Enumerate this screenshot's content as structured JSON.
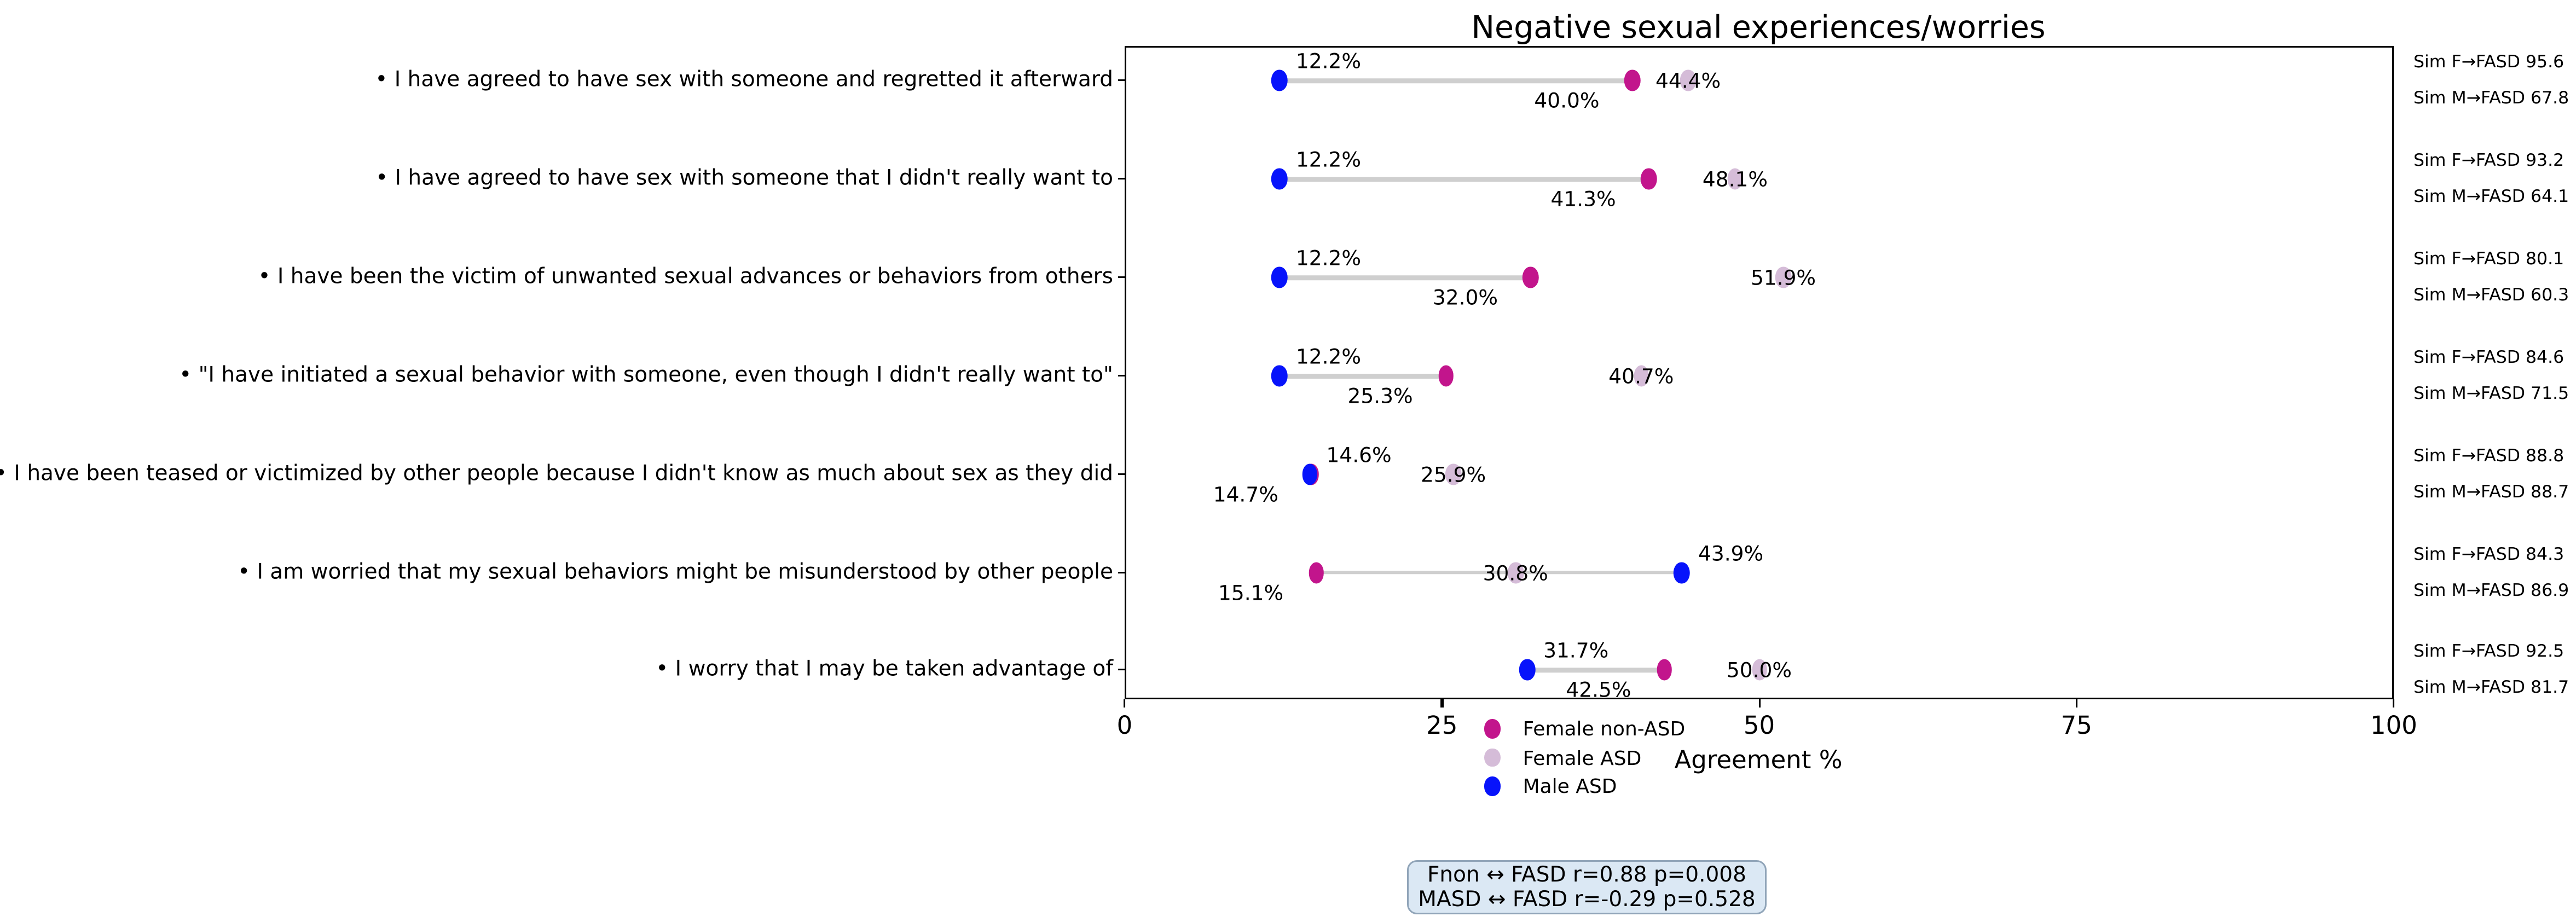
{
  "title": "Negative sexual experiences/worries",
  "xlabel": "Agreement %",
  "stats_box": {
    "line1": "Fnon ↔ FASD  r=0.88  p=0.008",
    "line2": "MASD ↔ FASD  r=-0.29  p=0.528"
  },
  "legend": [
    {
      "label": "Female non-ASD",
      "color": "#c2158c"
    },
    {
      "label": "Female ASD",
      "color": "#d5bcd8"
    },
    {
      "label": "Male ASD",
      "color": "#0713fb"
    }
  ],
  "colors": {
    "female_non_asd": "#c2158c",
    "female_asd": "#d5bcd8",
    "male_asd": "#0713fb",
    "connector": "#cfcfcf",
    "stats_box_bg": "#dbe8f4",
    "stats_box_border": "#90a4b8"
  },
  "chart_data": {
    "type": "scatter",
    "subtype": "dumbbell-dot-plot",
    "title": "Negative sexual experiences/worries",
    "xlabel": "Agreement %",
    "xlim": [
      0,
      100
    ],
    "x_ticks": [
      0,
      25,
      50,
      75,
      100
    ],
    "grid": false,
    "legend_position": "below-axis-left-of-center",
    "categories": [
      "• I have agreed to have sex with someone and regretted it afterward",
      "• I have agreed to have sex with someone that I didn't really want to",
      "• I have been the victim of unwanted sexual advances or behaviors from others",
      "• \"I have initiated a sexual behavior with someone, even though I didn't really want to\"",
      "• I have been teased or victimized by other people because I didn't know as much about sex as they did",
      "• I am worried that my sexual behaviors might be misunderstood by other people",
      "• I worry that I may be taken advantage of"
    ],
    "series": [
      {
        "name": "Female non-ASD",
        "values": [
          40.0,
          41.3,
          32.0,
          25.3,
          14.7,
          15.1,
          42.5
        ]
      },
      {
        "name": "Female ASD",
        "values": [
          44.4,
          48.1,
          51.9,
          40.7,
          25.9,
          30.8,
          50.0
        ]
      },
      {
        "name": "Male ASD",
        "values": [
          12.2,
          12.2,
          12.2,
          12.2,
          14.6,
          43.9,
          31.7
        ]
      }
    ],
    "right_annotations": [
      {
        "line1": "Sim F→FASD 95.6",
        "line2": "Sim M→FASD 67.8"
      },
      {
        "line1": "Sim F→FASD 93.2",
        "line2": "Sim M→FASD 64.1"
      },
      {
        "line1": "Sim F→FASD 80.1",
        "line2": "Sim M→FASD 60.3"
      },
      {
        "line1": "Sim F→FASD 84.6",
        "line2": "Sim M→FASD 71.5"
      },
      {
        "line1": "Sim F→FASD 88.8",
        "line2": "Sim M→FASD 88.7"
      },
      {
        "line1": "Sim F→FASD 84.3",
        "line2": "Sim M→FASD 86.9"
      },
      {
        "line1": "Sim F→FASD 92.5",
        "line2": "Sim M→FASD 81.7"
      }
    ],
    "annotations_note": "Dumbbell connects Female non-ASD and Male ASD; Female ASD dot sits under its own centered % label"
  }
}
